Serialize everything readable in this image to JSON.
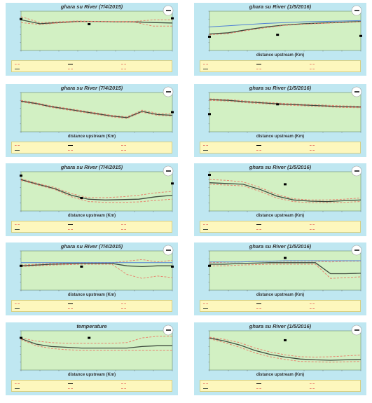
{
  "colors": {
    "panel_bg": "#bfe7f1",
    "plot_bg": "#d2f0c3",
    "legend_bg": "#fdf7bd",
    "model_line": "#3e4a3e",
    "min_max_line": "#e8846f",
    "blue_line": "#4f7fd6",
    "observed_point": "#000000"
  },
  "chart_data": [
    {
      "type": "line",
      "title": "ghara su River (7/4/2015)",
      "xlabel": "",
      "ylabel": "",
      "legend": [
        "",
        "",
        "",
        "",
        "",
        ""
      ],
      "lines": [
        {
          "role": "model",
          "style": "solid",
          "color": "#3e4a3e",
          "values": [
            0.78,
            0.68,
            0.71,
            0.74,
            0.74,
            0.73,
            0.73,
            0.71,
            0.7
          ]
        },
        {
          "role": "min",
          "style": "dashed",
          "color": "#e8846f",
          "values": [
            0.86,
            0.71,
            0.73,
            0.75,
            0.74,
            0.73,
            0.72,
            0.62,
            0.62
          ]
        },
        {
          "role": "max",
          "style": "dashed",
          "color": "#e8846f",
          "values": [
            0.71,
            0.66,
            0.7,
            0.73,
            0.74,
            0.74,
            0.74,
            0.78,
            0.78
          ]
        }
      ],
      "points": [
        {
          "x": 0.0,
          "y": 0.8
        },
        {
          "x": 0.45,
          "y": 0.67
        },
        {
          "x": 1.0,
          "y": 0.82
        }
      ]
    },
    {
      "type": "line",
      "title": "ghara su River (1/5/2016)",
      "xlabel": "distance upstream (Km)",
      "ylabel": "",
      "legend": [
        "",
        "",
        "",
        "",
        "",
        ""
      ],
      "lines": [
        {
          "role": "model",
          "style": "solid",
          "color": "#3e4a3e",
          "values": [
            0.42,
            0.45,
            0.53,
            0.6,
            0.65,
            0.68,
            0.7,
            0.72,
            0.74
          ]
        },
        {
          "role": "min",
          "style": "dashed",
          "color": "#e8846f",
          "values": [
            0.4,
            0.43,
            0.51,
            0.58,
            0.64,
            0.67,
            0.69,
            0.71,
            0.73
          ]
        },
        {
          "role": "max",
          "style": "solid",
          "color": "#4f7fd6",
          "values": [
            0.6,
            0.63,
            0.66,
            0.69,
            0.71,
            0.73,
            0.74,
            0.75,
            0.76
          ]
        }
      ],
      "points": [
        {
          "x": 0.0,
          "y": 0.35
        },
        {
          "x": 0.45,
          "y": 0.4
        },
        {
          "x": 1.0,
          "y": 0.37
        }
      ]
    },
    {
      "type": "line",
      "title": "ghara su River (7/4/2015)",
      "xlabel": "distance upstream (Km)",
      "ylabel": "",
      "legend": [
        "",
        "",
        "",
        "",
        "",
        ""
      ],
      "lines": [
        {
          "role": "model",
          "style": "solid",
          "color": "#3e4a3e",
          "values": [
            0.78,
            0.72,
            0.64,
            0.58,
            0.52,
            0.46,
            0.4,
            0.36,
            0.52,
            0.44,
            0.42
          ]
        },
        {
          "role": "min",
          "style": "dashed",
          "color": "#e8846f",
          "values": [
            0.76,
            0.7,
            0.62,
            0.56,
            0.5,
            0.44,
            0.38,
            0.34,
            0.5,
            0.42,
            0.4
          ]
        },
        {
          "role": "max",
          "style": "dashed",
          "color": "#e8846f",
          "values": [
            0.8,
            0.74,
            0.66,
            0.6,
            0.54,
            0.48,
            0.42,
            0.38,
            0.55,
            0.47,
            0.45
          ]
        }
      ],
      "points": [
        {
          "x": 1.0,
          "y": 0.5
        }
      ]
    },
    {
      "type": "line",
      "title": "ghara su River (1/5/2016)",
      "xlabel": "distance upstream (Km)",
      "ylabel": "",
      "legend": [
        "",
        "",
        "",
        "",
        "",
        ""
      ],
      "lines": [
        {
          "role": "model",
          "style": "solid",
          "color": "#3e4a3e",
          "values": [
            0.82,
            0.8,
            0.76,
            0.73,
            0.7,
            0.68,
            0.66,
            0.64,
            0.63
          ]
        },
        {
          "role": "min",
          "style": "dashed",
          "color": "#e8846f",
          "values": [
            0.8,
            0.78,
            0.74,
            0.71,
            0.68,
            0.66,
            0.64,
            0.62,
            0.61
          ]
        },
        {
          "role": "max",
          "style": "dashed",
          "color": "#e8846f",
          "values": [
            0.84,
            0.82,
            0.78,
            0.75,
            0.72,
            0.7,
            0.68,
            0.66,
            0.65
          ]
        }
      ],
      "points": [
        {
          "x": 0.0,
          "y": 0.45
        },
        {
          "x": 0.45,
          "y": 0.7
        }
      ]
    },
    {
      "type": "line",
      "title": "ghara su River (7/4/2015)",
      "xlabel": "distance upstream (Km)",
      "ylabel": "",
      "legend": [
        "",
        "",
        "",
        "",
        "",
        ""
      ],
      "lines": [
        {
          "role": "model",
          "style": "solid",
          "color": "#3e4a3e",
          "values": [
            0.8,
            0.68,
            0.57,
            0.4,
            0.3,
            0.28,
            0.29,
            0.3,
            0.36,
            0.4
          ]
        },
        {
          "role": "min",
          "style": "dashed",
          "color": "#e8846f",
          "values": [
            0.78,
            0.66,
            0.55,
            0.36,
            0.24,
            0.22,
            0.22,
            0.23,
            0.27,
            0.3
          ]
        },
        {
          "role": "max",
          "style": "dashed",
          "color": "#e8846f",
          "values": [
            0.82,
            0.7,
            0.6,
            0.44,
            0.34,
            0.34,
            0.36,
            0.4,
            0.46,
            0.5
          ]
        }
      ],
      "points": [
        {
          "x": 0.0,
          "y": 0.9
        },
        {
          "x": 0.4,
          "y": 0.33
        },
        {
          "x": 1.0,
          "y": 0.7
        }
      ]
    },
    {
      "type": "line",
      "title": "ghara su River (1/5/2016)",
      "xlabel": "distance upstream (Km)",
      "ylabel": "",
      "legend": [
        "",
        "",
        "",
        "",
        "",
        ""
      ],
      "lines": [
        {
          "role": "model",
          "style": "solid",
          "color": "#3e4a3e",
          "values": [
            0.72,
            0.7,
            0.68,
            0.55,
            0.38,
            0.28,
            0.25,
            0.24,
            0.26,
            0.28
          ]
        },
        {
          "role": "min",
          "style": "dashed",
          "color": "#e8846f",
          "values": [
            0.68,
            0.66,
            0.64,
            0.5,
            0.33,
            0.24,
            0.21,
            0.21,
            0.22,
            0.24
          ]
        },
        {
          "role": "max",
          "style": "dashed",
          "color": "#e8846f",
          "values": [
            0.8,
            0.78,
            0.74,
            0.6,
            0.42,
            0.31,
            0.28,
            0.28,
            0.3,
            0.33
          ]
        }
      ],
      "points": [
        {
          "x": 0.0,
          "y": 0.92
        },
        {
          "x": 0.5,
          "y": 0.68
        }
      ]
    },
    {
      "type": "line",
      "title": "ghara su River (7/4/2015)",
      "xlabel": "distance upstream (Km)",
      "ylabel": "",
      "legend": [
        "",
        "",
        "",
        "",
        "",
        ""
      ],
      "lines": [
        {
          "role": "model",
          "style": "solid",
          "color": "#3e4a3e",
          "values": [
            0.62,
            0.64,
            0.66,
            0.67,
            0.68,
            0.68,
            0.68,
            0.62,
            0.6,
            0.62,
            0.62
          ]
        },
        {
          "role": "min",
          "style": "dashed",
          "color": "#e8846f",
          "values": [
            0.6,
            0.62,
            0.64,
            0.65,
            0.66,
            0.66,
            0.66,
            0.4,
            0.3,
            0.36,
            0.32
          ]
        },
        {
          "role": "max",
          "style": "dashed",
          "color": "#e8846f",
          "values": [
            0.64,
            0.66,
            0.68,
            0.69,
            0.7,
            0.7,
            0.7,
            0.74,
            0.78,
            0.72,
            0.76
          ]
        },
        {
          "role": "ref",
          "style": "solid",
          "color": "#4f7fd6",
          "values": [
            0.7,
            0.7,
            0.7,
            0.7,
            0.7,
            0.7,
            0.7,
            0.7,
            0.7,
            0.7,
            0.7
          ]
        }
      ],
      "points": [
        {
          "x": 0.0,
          "y": 0.62
        },
        {
          "x": 0.4,
          "y": 0.6
        },
        {
          "x": 1.0,
          "y": 0.6
        }
      ]
    },
    {
      "type": "line",
      "title": "ghara su River (1/5/2016)",
      "xlabel": "distance upstream (Km)",
      "ylabel": "",
      "legend": [
        "",
        "",
        "",
        "",
        "",
        ""
      ],
      "lines": [
        {
          "role": "model",
          "style": "solid",
          "color": "#3e4a3e",
          "values": [
            0.66,
            0.66,
            0.68,
            0.69,
            0.7,
            0.7,
            0.7,
            0.7,
            0.42,
            0.42,
            0.43
          ]
        },
        {
          "role": "min",
          "style": "dashed",
          "color": "#e8846f",
          "values": [
            0.62,
            0.62,
            0.64,
            0.65,
            0.66,
            0.66,
            0.66,
            0.66,
            0.3,
            0.32,
            0.34
          ]
        },
        {
          "role": "max",
          "style": "dashed",
          "color": "#e8846f",
          "values": [
            0.7,
            0.71,
            0.72,
            0.73,
            0.74,
            0.74,
            0.74,
            0.74,
            0.72,
            0.74,
            0.74
          ]
        },
        {
          "role": "ref",
          "style": "solid",
          "color": "#4f7fd6",
          "values": [
            0.72,
            0.72,
            0.72,
            0.73,
            0.74,
            0.75,
            0.75,
            0.75,
            0.75,
            0.75,
            0.75
          ]
        }
      ],
      "points": [
        {
          "x": 0.0,
          "y": 0.62
        },
        {
          "x": 0.5,
          "y": 0.82
        }
      ]
    },
    {
      "type": "line",
      "title": "temperature",
      "xlabel": "distance upstream (Km)",
      "ylabel": "",
      "legend": [
        "",
        "",
        "",
        "",
        "",
        ""
      ],
      "lines": [
        {
          "role": "model",
          "style": "solid",
          "color": "#3e4a3e",
          "values": [
            0.8,
            0.66,
            0.6,
            0.58,
            0.56,
            0.56,
            0.56,
            0.56,
            0.6,
            0.62,
            0.62
          ]
        },
        {
          "role": "min",
          "style": "dashed",
          "color": "#e8846f",
          "values": [
            0.78,
            0.62,
            0.55,
            0.52,
            0.5,
            0.5,
            0.5,
            0.5,
            0.5,
            0.5,
            0.5
          ]
        },
        {
          "role": "max",
          "style": "dashed",
          "color": "#e8846f",
          "values": [
            0.82,
            0.74,
            0.7,
            0.68,
            0.68,
            0.68,
            0.68,
            0.7,
            0.82,
            0.86,
            0.86
          ]
        }
      ],
      "points": [
        {
          "x": 0.0,
          "y": 0.82
        },
        {
          "x": 0.45,
          "y": 0.82
        }
      ]
    },
    {
      "type": "line",
      "title": "ghara su River (1/5/2016)",
      "xlabel": "distance upstream (Km)",
      "ylabel": "",
      "legend": [
        "",
        "",
        "",
        "",
        "",
        ""
      ],
      "lines": [
        {
          "role": "model",
          "style": "solid",
          "color": "#3e4a3e",
          "values": [
            0.82,
            0.74,
            0.64,
            0.5,
            0.4,
            0.33,
            0.28,
            0.26,
            0.25,
            0.26,
            0.27
          ]
        },
        {
          "role": "min",
          "style": "dashed",
          "color": "#e8846f",
          "values": [
            0.8,
            0.7,
            0.58,
            0.44,
            0.34,
            0.27,
            0.22,
            0.21,
            0.2,
            0.21,
            0.22
          ]
        },
        {
          "role": "max",
          "style": "dashed",
          "color": "#e8846f",
          "values": [
            0.84,
            0.78,
            0.7,
            0.56,
            0.46,
            0.39,
            0.34,
            0.33,
            0.34,
            0.36,
            0.38
          ]
        }
      ],
      "points": [
        {
          "x": 0.5,
          "y": 0.76
        }
      ]
    }
  ]
}
